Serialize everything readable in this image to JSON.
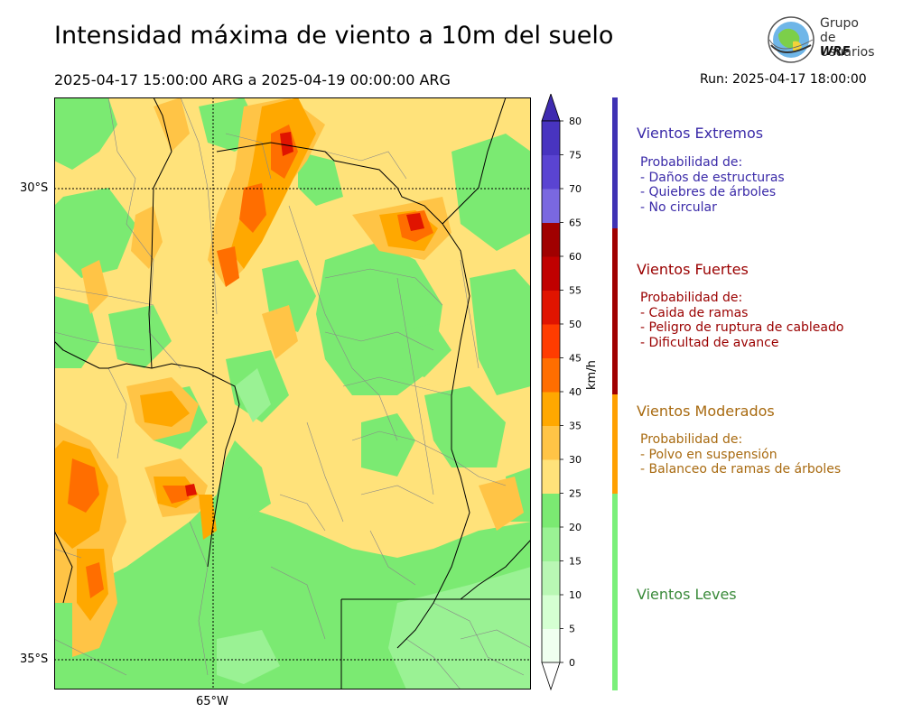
{
  "title": "Intensidad máxima de viento a 10m del suelo",
  "period": "2025-04-17 15:00:00 ARG  a  2025-04-19 00:00:00 ARG",
  "run": "Run: 2025-04-17 18:00:00",
  "logo": {
    "line1": "Grupo de",
    "line2": "Usuarios",
    "line3": "WRF"
  },
  "map": {
    "lat_labels": [
      "30°S",
      "35°S"
    ],
    "lon_labels": [
      "65°W"
    ]
  },
  "colorbar": {
    "unit": "km/h",
    "ticks": [
      "0",
      "5",
      "10",
      "15",
      "20",
      "25",
      "30",
      "35",
      "40",
      "45",
      "50",
      "55",
      "60",
      "65",
      "70",
      "75",
      "80"
    ],
    "colors": [
      "#f0fff0",
      "#d5ffd2",
      "#b9f7b4",
      "#9af294",
      "#7bea72",
      "#ffe27a",
      "#ffc446",
      "#ffa800",
      "#ff6e00",
      "#ff3c00",
      "#e01400",
      "#c00000",
      "#a00000",
      "#7a68e0",
      "#5a44d2",
      "#4834c0"
    ],
    "extend_low": "#ffffff",
    "extend_high": "#3f2bb0"
  },
  "categories": [
    {
      "title": "Vientos Extremos",
      "color": "#3f32b4",
      "text_color": "#3a2aa8",
      "lines": [
        "Probabilidad de:",
        "- Daños de estructuras",
        "- Quiebres de árboles",
        "- No circular"
      ]
    },
    {
      "title": "Vientos Fuertes",
      "color": "#a00000",
      "text_color": "#9a0000",
      "lines": [
        "Probabilidad de:",
        "- Caida de ramas",
        "- Peligro de ruptura de cableado",
        "- Dificultad de avance"
      ]
    },
    {
      "title": "Vientos Moderados",
      "color": "#ffa000",
      "text_color": "#a86a10",
      "lines": [
        "Probabilidad de:",
        "- Polvo en suspensión",
        "- Balanceo de ramas de árboles"
      ]
    },
    {
      "title": "Vientos Leves",
      "color": "#7af07a",
      "text_color": "#3a8a3a",
      "lines": []
    }
  ]
}
